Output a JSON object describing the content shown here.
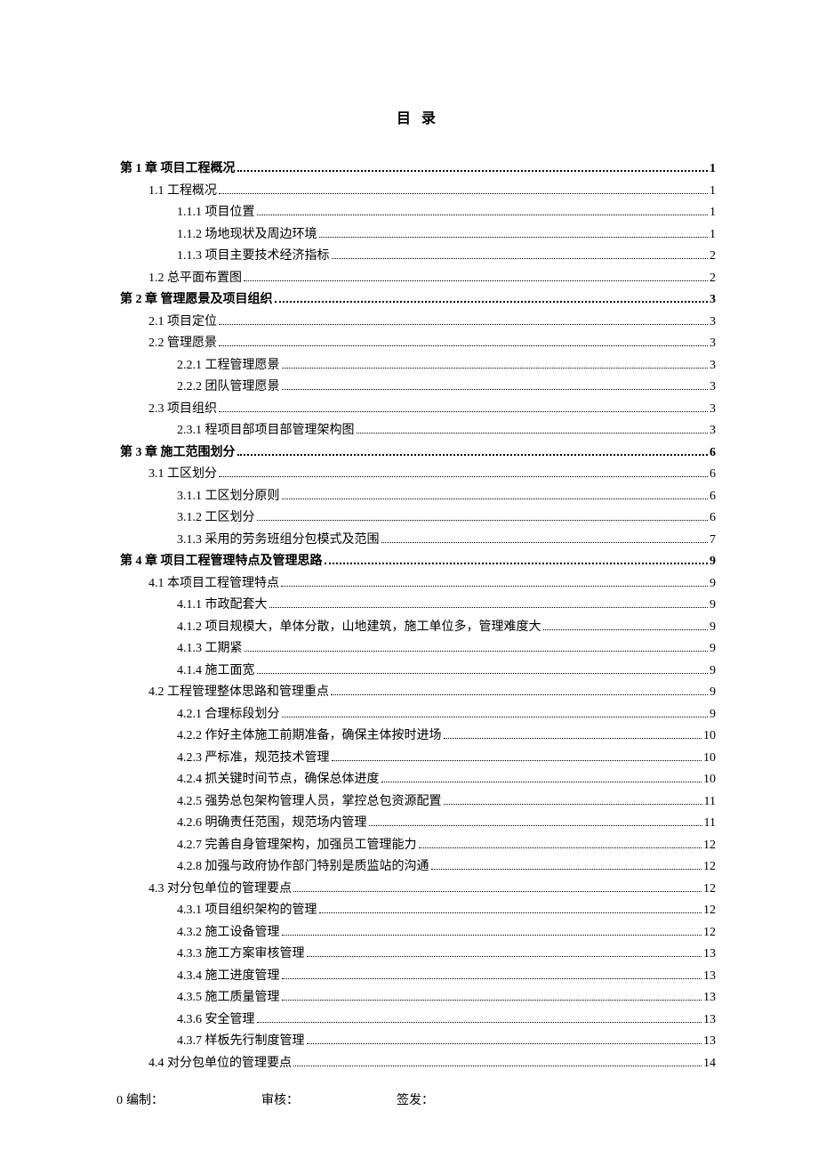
{
  "title": "目 录",
  "footer": {
    "page_prefix": "0",
    "compiled_by": "编制：",
    "reviewed_by": "审核：",
    "signed_by": "签发："
  },
  "toc": [
    {
      "level": "chapter",
      "label": "第 1 章  项目工程概况",
      "page": "1"
    },
    {
      "level": "section",
      "label": "1.1  工程概况",
      "page": "1"
    },
    {
      "level": "sub",
      "label": "1.1.1  项目位置",
      "page": "1"
    },
    {
      "level": "sub",
      "label": "1.1.2  场地现状及周边环境",
      "page": "1"
    },
    {
      "level": "sub",
      "label": "1.1.3  项目主要技术经济指标",
      "page": "2"
    },
    {
      "level": "section",
      "label": "1.2  总平面布置图",
      "page": "2"
    },
    {
      "level": "chapter",
      "label": "第 2 章  管理愿景及项目组织",
      "page": "3"
    },
    {
      "level": "section",
      "label": "2.1  项目定位",
      "page": "3"
    },
    {
      "level": "section",
      "label": "2.2     管理愿景",
      "page": "3"
    },
    {
      "level": "sub",
      "label": "2.2.1    工程管理愿景",
      "page": "3"
    },
    {
      "level": "sub",
      "label": "2.2.2    团队管理愿景",
      "page": "3"
    },
    {
      "level": "section",
      "label": "2.3     项目组织",
      "page": "3"
    },
    {
      "level": "sub",
      "label": "2.3.1    程项目部项目部管理架构图",
      "page": "3"
    },
    {
      "level": "chapter",
      "label": "第 3 章  施工范围划分",
      "page": "6"
    },
    {
      "level": "section",
      "label": "3.1  工区划分",
      "page": "6"
    },
    {
      "level": "sub",
      "label": "3.1.1  工区划分原则",
      "page": "6"
    },
    {
      "level": "sub",
      "label": "3.1.2  工区划分",
      "page": "6"
    },
    {
      "level": "sub",
      "label": "3.1.3  采用的劳务班组分包模式及范围",
      "page": "7"
    },
    {
      "level": "chapter",
      "label": "第 4 章  项目工程管理特点及管理思路",
      "page": "9"
    },
    {
      "level": "section",
      "label": "4.1  本项目工程管理特点",
      "page": "9"
    },
    {
      "level": "sub",
      "label": "4.1.1  市政配套大",
      "page": "9"
    },
    {
      "level": "sub",
      "label": "4.1.2  项目规模大，单体分散，山地建筑，施工单位多，管理难度大",
      "page": "9"
    },
    {
      "level": "sub",
      "label": "4.1.3  工期紧",
      "page": "9"
    },
    {
      "level": "sub",
      "label": "4.1.4  施工面宽",
      "page": "9"
    },
    {
      "level": "section",
      "label": "4.2  工程管理整体思路和管理重点",
      "page": "9"
    },
    {
      "level": "sub",
      "label": "4.2.1  合理标段划分",
      "page": "9"
    },
    {
      "level": "sub",
      "label": "4.2.2  作好主体施工前期准备，确保主体按时进场",
      "page": "10"
    },
    {
      "level": "sub",
      "label": "4.2.3  严标准，规范技术管理",
      "page": "10"
    },
    {
      "level": "sub",
      "label": "4.2.4  抓关键时间节点，确保总体进度",
      "page": "10"
    },
    {
      "level": "sub",
      "label": "4.2.5  强势总包架构管理人员，掌控总包资源配置",
      "page": "11"
    },
    {
      "level": "sub",
      "label": "4.2.6  明确责任范围，规范场内管理",
      "page": "11"
    },
    {
      "level": "sub",
      "label": "4.2.7  完善自身管理架构，加强员工管理能力",
      "page": "12"
    },
    {
      "level": "sub",
      "label": "4.2.8  加强与政府协作部门特别是质监站的沟通",
      "page": "12"
    },
    {
      "level": "section",
      "label": "4.3  对分包单位的管理要点",
      "page": "12"
    },
    {
      "level": "sub",
      "label": "4.3.1  项目组织架构的管理",
      "page": "12"
    },
    {
      "level": "sub",
      "label": "4.3.2  施工设备管理",
      "page": "12"
    },
    {
      "level": "sub",
      "label": "4.3.3  施工方案审核管理",
      "page": "13"
    },
    {
      "level": "sub",
      "label": "4.3.4  施工进度管理",
      "page": "13"
    },
    {
      "level": "sub",
      "label": "4.3.5  施工质量管理",
      "page": "13"
    },
    {
      "level": "sub",
      "label": "4.3.6  安全管理",
      "page": "13"
    },
    {
      "level": "sub",
      "label": "4.3.7  样板先行制度管理",
      "page": "13"
    },
    {
      "level": "section",
      "label": "4.4  对分包单位的管理要点",
      "page": "14"
    }
  ]
}
